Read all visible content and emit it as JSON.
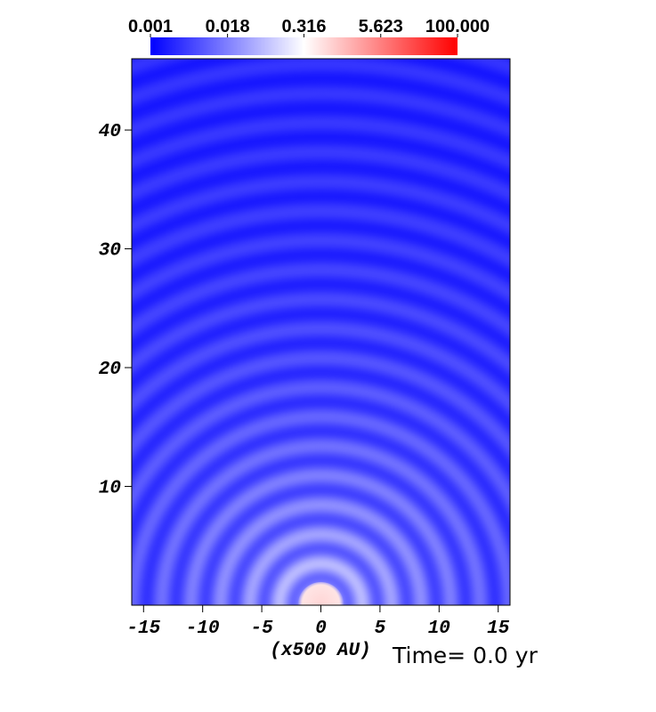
{
  "chart_data": {
    "type": "image",
    "colorbar": {
      "lim": [
        0.001,
        100
      ],
      "log": true,
      "colors": [
        "#0000ff",
        "#ffffff",
        "#ff0000"
      ],
      "ticks": [
        0.001,
        0.018,
        0.316,
        5.623,
        {
          "value": 100,
          "label": "100.000"
        }
      ]
    },
    "xlim": [
      -16,
      16
    ],
    "xticks": [
      -15,
      -10,
      -5,
      0,
      5,
      10,
      15
    ],
    "ylim": [
      0,
      46
    ],
    "yticks": [
      10,
      20,
      30,
      40
    ],
    "xlabel": "(x500 AU)",
    "annotation": "Time= 0.0 yr"
  }
}
